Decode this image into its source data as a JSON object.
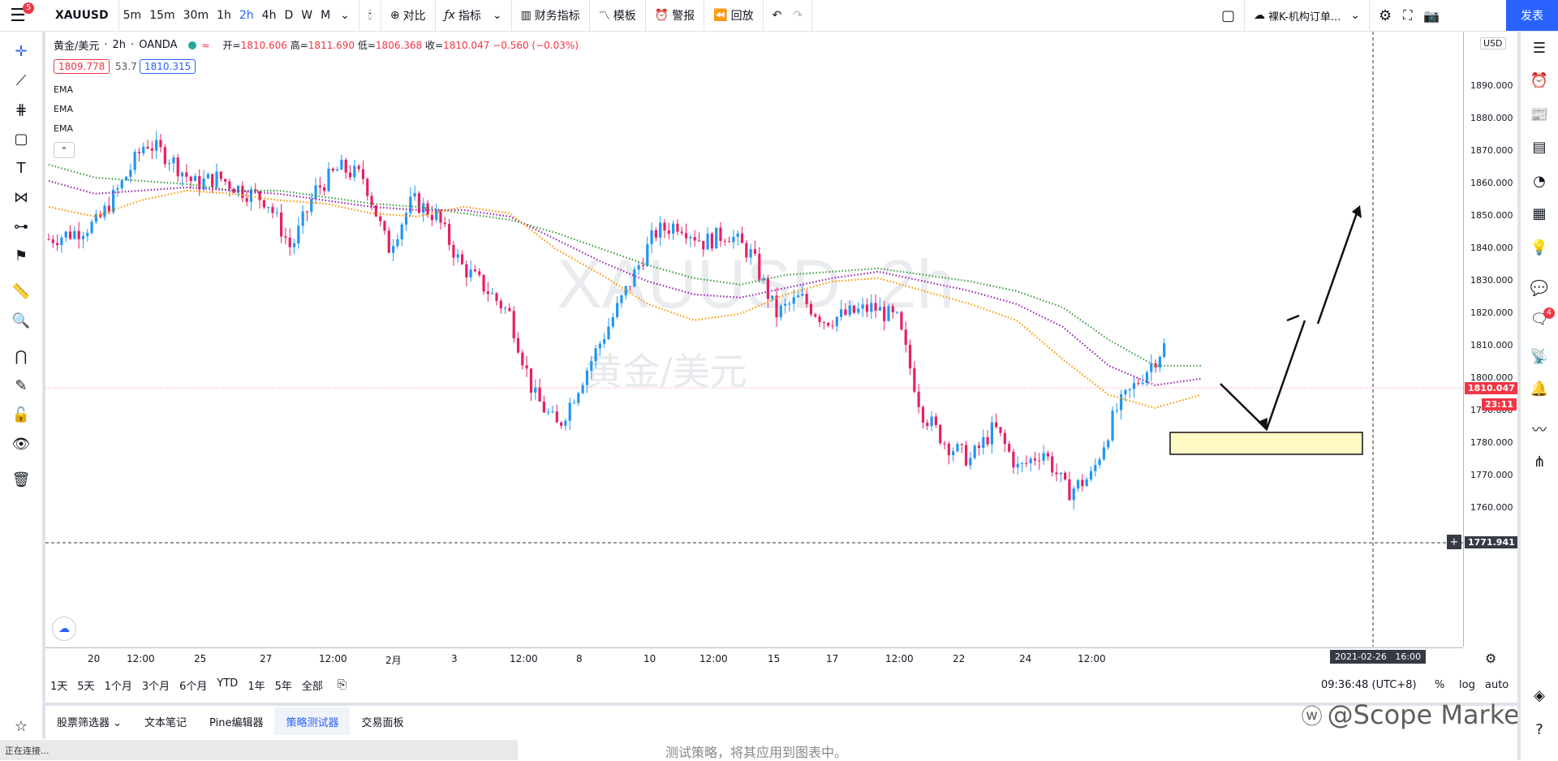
{
  "toolbar": {
    "menu_badge": "5",
    "symbol": "XAUUSD",
    "intervals": [
      "5m",
      "15m",
      "30m",
      "1h",
      "2h",
      "4h",
      "D",
      "W",
      "M"
    ],
    "active_interval": "2h",
    "compare_label": "对比",
    "indicators_label": "指标",
    "financials_label": "财务指标",
    "templates_label": "模板",
    "alert_label": "警报",
    "replay_label": "回放",
    "layout_name": "裸K-机构订单...",
    "publish_label": "发表"
  },
  "legend": {
    "title": "黄金/美元",
    "interval": "2h",
    "source": "OANDA",
    "open_label": "开=",
    "open": "1810.606",
    "high_label": "高=",
    "high": "1811.690",
    "low_label": "低=",
    "low": "1806.368",
    "close_label": "收=",
    "close": "1810.047",
    "change": "−0.560 (−0.03%)",
    "bid": "1809.778",
    "spread": "53.7",
    "ask": "1810.315",
    "ema_labels": [
      "EMA",
      "EMA",
      "EMA"
    ]
  },
  "watermark_chart": {
    "symbol": "XAUUSD, 2h",
    "name": "黄金/美元"
  },
  "price_axis": {
    "currency": "USD",
    "ticks": [
      "1890.000",
      "1880.000",
      "1870.000",
      "1860.000",
      "1850.000",
      "1840.000",
      "1830.000",
      "1820.000",
      "1810.000",
      "1800.000",
      "1790.000",
      "1780.000",
      "1770.000",
      "1760.000",
      "1750.000"
    ],
    "current_price": "1810.047",
    "countdown": "23:11",
    "crosshair_price": "1771.941"
  },
  "time_axis": {
    "ticks": [
      "20",
      "12:00",
      "25",
      "27",
      "12:00",
      "2月",
      "3",
      "12:00",
      "8",
      "10",
      "12:00",
      "15",
      "17",
      "12:00",
      "22",
      "24",
      "12:00"
    ],
    "crosshair_time": "2021-02-26   16:00"
  },
  "ranges": [
    "1天",
    "5天",
    "1个月",
    "3个月",
    "6个月",
    "YTD",
    "1年",
    "5年",
    "全部"
  ],
  "clock": "09:36:48 (UTC+8)",
  "scale_opts": [
    "%",
    "log",
    "auto"
  ],
  "bottom_tabs": [
    "股票筛选器",
    "文本笔记",
    "Pine编辑器",
    "策略测试器",
    "交易面板"
  ],
  "active_tab": "策略测试器",
  "status_text": "正在连接...",
  "hint_text": "测试策略，将其应用到图表中。",
  "right_badge": "4",
  "brand_watermark": "@Scope Markets",
  "colors": {
    "up": "#26a69a",
    "up_blue": "#2196f3",
    "down": "#e91e63",
    "ema_green": "#43a047",
    "ema_purple": "#9c27b0",
    "ema_orange": "#ff9800",
    "accent": "#2962ff",
    "price_label": "#f23645",
    "zone_fill": "#fff9c4"
  },
  "chart_data": {
    "type": "candlestick",
    "symbol": "XAUUSD",
    "interval": "2h",
    "ylim": [
      1745,
      1895
    ],
    "ema_series": [
      {
        "name": "EMA",
        "color": "green",
        "values": [
          1866,
          1862,
          1861,
          1860,
          1858,
          1858,
          1856,
          1854,
          1853,
          1851,
          1849,
          1845,
          1840,
          1835,
          1831,
          1829,
          1832,
          1833,
          1834,
          1832,
          1830,
          1827,
          1822,
          1812,
          1804,
          1804
        ]
      },
      {
        "name": "EMA",
        "color": "purple",
        "values": [
          1861,
          1857,
          1858,
          1859,
          1858,
          1857,
          1855,
          1853,
          1852,
          1852,
          1850,
          1843,
          1836,
          1830,
          1826,
          1825,
          1828,
          1831,
          1833,
          1830,
          1827,
          1823,
          1816,
          1804,
          1798,
          1800
        ]
      },
      {
        "name": "EMA",
        "color": "orange",
        "values": [
          1853,
          1850,
          1855,
          1858,
          1857,
          1855,
          1854,
          1851,
          1850,
          1853,
          1851,
          1840,
          1832,
          1823,
          1818,
          1820,
          1826,
          1830,
          1831,
          1827,
          1823,
          1818,
          1806,
          1795,
          1791,
          1795
        ]
      }
    ],
    "annotations": {
      "zone": [
        1794,
        1800
      ],
      "arrow_path": [
        1810,
        1799,
        1828,
        1855
      ],
      "crosshair_price": 1771.941
    }
  }
}
